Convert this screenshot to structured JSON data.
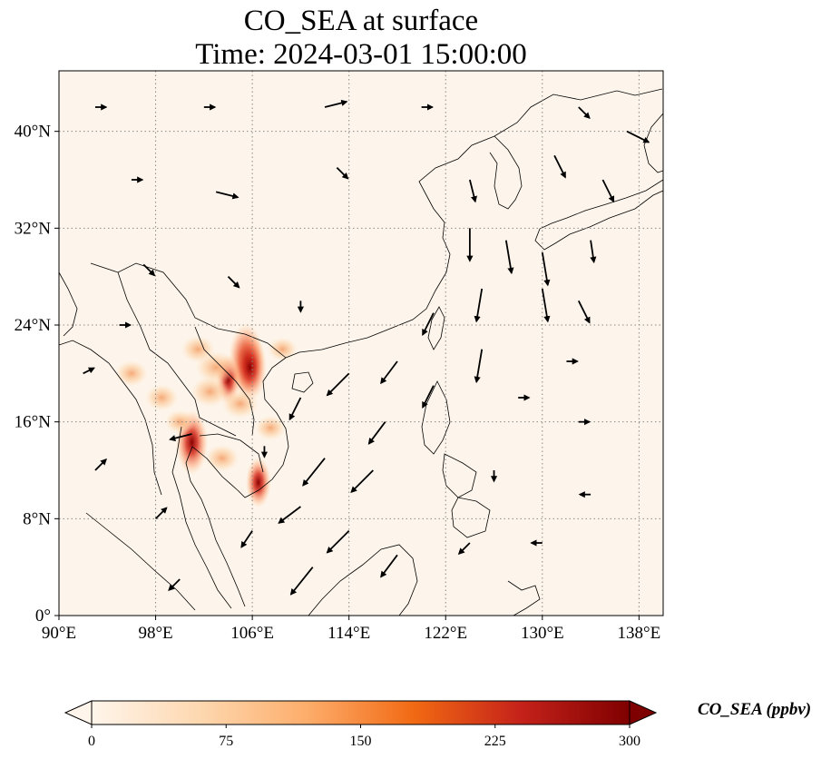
{
  "title": {
    "line1": "CO_SEA at surface",
    "line2": "Time: 2024-03-01 15:00:00"
  },
  "map": {
    "lon_range": [
      90,
      140
    ],
    "lat_range": [
      0,
      45
    ],
    "lon_ticks": [
      {
        "value": 90,
        "label": "90°E"
      },
      {
        "value": 98,
        "label": "98°E"
      },
      {
        "value": 106,
        "label": "106°E"
      },
      {
        "value": 114,
        "label": "114°E"
      },
      {
        "value": 122,
        "label": "122°E"
      },
      {
        "value": 130,
        "label": "130°E"
      },
      {
        "value": 138,
        "label": "138°E"
      }
    ],
    "lat_ticks": [
      {
        "value": 0,
        "label": "0°"
      },
      {
        "value": 8,
        "label": "8°N"
      },
      {
        "value": 16,
        "label": "16°N"
      },
      {
        "value": 24,
        "label": "24°N"
      },
      {
        "value": 32,
        "label": "32°N"
      },
      {
        "value": 40,
        "label": "40°N"
      }
    ],
    "gridlines": true,
    "background_color": "#fdf5eb",
    "hotspots": [
      {
        "lon": 105.5,
        "lat": 21.2,
        "value": 300
      },
      {
        "lon": 105.8,
        "lat": 20.5,
        "value": 280
      },
      {
        "lon": 101.0,
        "lat": 14.3,
        "value": 260
      },
      {
        "lon": 104.0,
        "lat": 19.5,
        "value": 160
      },
      {
        "lon": 103.0,
        "lat": 20.5,
        "value": 140
      },
      {
        "lon": 102.5,
        "lat": 18.5,
        "value": 120
      },
      {
        "lon": 106.5,
        "lat": 11.0,
        "value": 170
      },
      {
        "lon": 105.0,
        "lat": 17.5,
        "value": 110
      },
      {
        "lon": 101.5,
        "lat": 22.0,
        "value": 90
      },
      {
        "lon": 96.0,
        "lat": 20.0,
        "value": 80
      },
      {
        "lon": 98.5,
        "lat": 18.0,
        "value": 85
      },
      {
        "lon": 103.5,
        "lat": 13.0,
        "value": 90
      },
      {
        "lon": 108.5,
        "lat": 22.0,
        "value": 60
      },
      {
        "lon": 107.5,
        "lat": 15.5,
        "value": 70
      },
      {
        "lon": 100.0,
        "lat": 16.0,
        "value": 60
      }
    ],
    "wind_vectors": [
      {
        "lon": 93,
        "lat": 42,
        "u": 1,
        "v": 0
      },
      {
        "lon": 102,
        "lat": 42,
        "u": 1,
        "v": 0
      },
      {
        "lon": 112,
        "lat": 42,
        "u": 2,
        "v": 0.5
      },
      {
        "lon": 120,
        "lat": 42,
        "u": 1,
        "v": 0
      },
      {
        "lon": 133,
        "lat": 42,
        "u": 1,
        "v": -1
      },
      {
        "lon": 137,
        "lat": 40,
        "u": 2,
        "v": -1
      },
      {
        "lon": 96,
        "lat": 36,
        "u": 1,
        "v": 0
      },
      {
        "lon": 103,
        "lat": 35,
        "u": 2,
        "v": -0.5
      },
      {
        "lon": 113,
        "lat": 37,
        "u": 1,
        "v": -1
      },
      {
        "lon": 124,
        "lat": 36,
        "u": 0.5,
        "v": -2
      },
      {
        "lon": 131,
        "lat": 38,
        "u": 1,
        "v": -2
      },
      {
        "lon": 135,
        "lat": 36,
        "u": 1,
        "v": -2
      },
      {
        "lon": 124,
        "lat": 32,
        "u": 0,
        "v": -3
      },
      {
        "lon": 127,
        "lat": 31,
        "u": 0.5,
        "v": -3
      },
      {
        "lon": 130,
        "lat": 30,
        "u": 0.5,
        "v": -3
      },
      {
        "lon": 134,
        "lat": 31,
        "u": 0.3,
        "v": -2
      },
      {
        "lon": 130,
        "lat": 27,
        "u": 0.5,
        "v": -3
      },
      {
        "lon": 125,
        "lat": 27,
        "u": -0.5,
        "v": -3
      },
      {
        "lon": 133,
        "lat": 26,
        "u": 1,
        "v": -2
      },
      {
        "lon": 97,
        "lat": 29,
        "u": 1,
        "v": -1
      },
      {
        "lon": 104,
        "lat": 28,
        "u": 1,
        "v": -1
      },
      {
        "lon": 110,
        "lat": 26,
        "u": 0,
        "v": -1
      },
      {
        "lon": 121,
        "lat": 25,
        "u": -1,
        "v": -2
      },
      {
        "lon": 125,
        "lat": 22,
        "u": -0.5,
        "v": -3
      },
      {
        "lon": 118,
        "lat": 21,
        "u": -1.5,
        "v": -2
      },
      {
        "lon": 114,
        "lat": 20,
        "u": -2,
        "v": -2
      },
      {
        "lon": 121,
        "lat": 19,
        "u": -1,
        "v": -2
      },
      {
        "lon": 110,
        "lat": 18,
        "u": -1,
        "v": -2
      },
      {
        "lon": 117,
        "lat": 16,
        "u": -1.5,
        "v": -2
      },
      {
        "lon": 112,
        "lat": 13,
        "u": -2,
        "v": -2.5
      },
      {
        "lon": 116,
        "lat": 12,
        "u": -2,
        "v": -2
      },
      {
        "lon": 110,
        "lat": 9,
        "u": -2,
        "v": -1.5
      },
      {
        "lon": 114,
        "lat": 7,
        "u": -2,
        "v": -2
      },
      {
        "lon": 118,
        "lat": 5,
        "u": -1.5,
        "v": -2
      },
      {
        "lon": 111,
        "lat": 4,
        "u": -2,
        "v": -2.5
      },
      {
        "lon": 106,
        "lat": 7,
        "u": -1,
        "v": -1.5
      },
      {
        "lon": 98,
        "lat": 8,
        "u": 1,
        "v": 1
      },
      {
        "lon": 93,
        "lat": 12,
        "u": 1,
        "v": 1
      },
      {
        "lon": 101,
        "lat": 15,
        "u": -2,
        "v": -0.5
      },
      {
        "lon": 107,
        "lat": 14,
        "u": 0,
        "v": -1
      },
      {
        "lon": 128,
        "lat": 18,
        "u": 1,
        "v": 0
      },
      {
        "lon": 133,
        "lat": 16,
        "u": 1,
        "v": 0
      },
      {
        "lon": 134,
        "lat": 10,
        "u": -1,
        "v": 0
      },
      {
        "lon": 126,
        "lat": 12,
        "u": 0,
        "v": -1
      },
      {
        "lon": 132,
        "lat": 21,
        "u": 1,
        "v": 0
      },
      {
        "lon": 92,
        "lat": 20,
        "u": 1,
        "v": 0.5
      },
      {
        "lon": 95,
        "lat": 24,
        "u": 1,
        "v": 0
      },
      {
        "lon": 100,
        "lat": 3,
        "u": -1,
        "v": -1
      },
      {
        "lon": 124,
        "lat": 6,
        "u": -1,
        "v": -1
      },
      {
        "lon": 130,
        "lat": 6,
        "u": -1,
        "v": 0
      }
    ]
  },
  "colorbar": {
    "label": "CO_SEA (ppbv)",
    "ticks": [
      {
        "value": 0,
        "label": "0"
      },
      {
        "value": 75,
        "label": "75"
      },
      {
        "value": 150,
        "label": "150"
      },
      {
        "value": 225,
        "label": "225"
      },
      {
        "value": 300,
        "label": "300"
      }
    ],
    "range": [
      0,
      300
    ],
    "colormap": [
      "#fff5eb",
      "#fdd8b0",
      "#fdad6b",
      "#f16913",
      "#c4211a",
      "#7f0000"
    ]
  }
}
